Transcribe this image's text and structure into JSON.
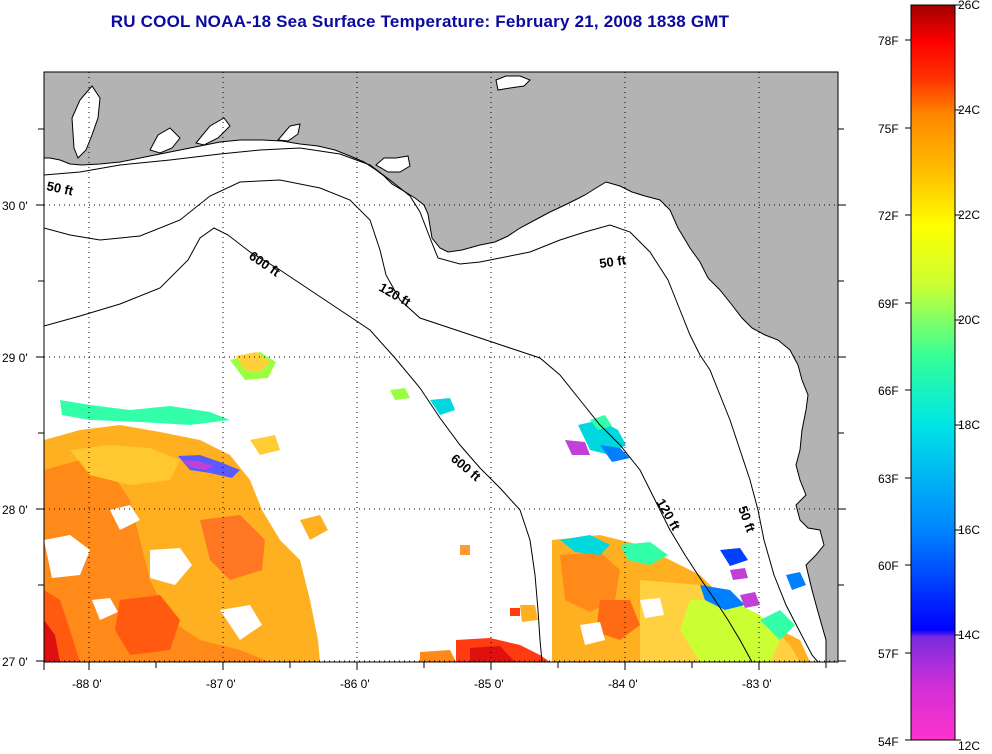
{
  "title": "RU COOL  NOAA-18  Sea Surface Temperature:  February 21, 2008 1838 GMT",
  "map": {
    "lon_ticks": [
      "-88 0'",
      "-87 0'",
      "-86 0'",
      "-85 0'",
      "-84 0'",
      "-83 0'"
    ],
    "lat_ticks": [
      "27 0'",
      "28 0'",
      "29 0'",
      "30 0'"
    ],
    "contours": [
      {
        "label": "50 ft",
        "instances": 3
      },
      {
        "label": "120 ft",
        "instances": 2
      },
      {
        "label": "600 ft",
        "instances": 2
      }
    ],
    "contour_labels": {
      "c50_west": "50 ft",
      "c50_east": "50 ft",
      "c50_south": "50 ft",
      "c120_north": "120 ft",
      "c120_south": "120 ft",
      "c600_north": "600 ft",
      "c600_south": "600 ft"
    },
    "colors": {
      "land": "#b3b3b3",
      "cloud_no_data": "#ffffff",
      "grid": "#000000"
    }
  },
  "colorbar": {
    "celsius_labels": [
      "26C",
      "24C",
      "22C",
      "20C",
      "18C",
      "16C",
      "14C",
      "12C"
    ],
    "fahrenheit_labels": [
      "78F",
      "75F",
      "72F",
      "69F",
      "66F",
      "63F",
      "60F",
      "57F",
      "54F"
    ],
    "range_c": [
      12,
      26
    ],
    "stops": [
      "#ff33cc",
      "#9a2cd6",
      "#0000ff",
      "#0088ff",
      "#00e5e5",
      "#33ff99",
      "#ccff33",
      "#ffff00",
      "#ffc000",
      "#ff8800",
      "#ff3300",
      "#ff0000",
      "#a00000"
    ]
  }
}
